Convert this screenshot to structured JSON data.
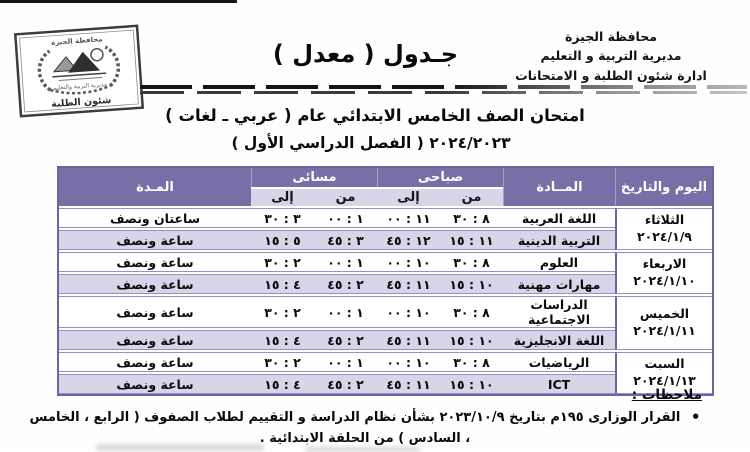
{
  "colors": {
    "header_purple": "#7a6ea6",
    "row_lavender": "#dad4e8",
    "table_border": "#6f64a0",
    "hairline": "#9a8fc2",
    "ink": "#0d0d0d"
  },
  "letterhead": {
    "org_line1": "محافظة الجيزة",
    "org_line2": "مديرية التربية و التعليم",
    "org_line3": "ادارة شئون الطلبة و الامتحانات",
    "banner": "جـدول ( معدل )",
    "stamp_top": "محافظة الجيزة",
    "stamp_middle": "مديرية التربية والتعليم",
    "stamp_bottom": "شئون الطلبة"
  },
  "title": {
    "line1": "امتحان الصف الخامس الابتدائي عام ( عربي ـ لغات )",
    "line2_label": "( الفصل الدراسي الأول )",
    "line2_years": "٢٠٢٤/٢٠٢٣"
  },
  "table": {
    "col_day": "اليوم والتاريخ",
    "col_subject": "المــادة",
    "col_morning": "صباحى",
    "col_evening": "مسائى",
    "col_from": "من",
    "col_to": "إلى",
    "col_duration": "المـدة",
    "days": [
      {
        "name": "الثلاثاء",
        "date": "٢٠٢٤/١/٩"
      },
      {
        "name": "الاربعاء",
        "date": "٢٠٢٤/١/١٠"
      },
      {
        "name": "الخميس",
        "date": "٢٠٢٤/١/١١"
      },
      {
        "name": "السبت",
        "date": "٢٠٢٤/١/١٣"
      }
    ],
    "rows": [
      {
        "subject": "اللغة العربية",
        "morning_from": "٨ : ٣٠",
        "morning_to": "١١ : ٠٠",
        "evening_from": "١ : ٠٠",
        "evening_to": "٣ : ٣٠",
        "duration": "ساعتان ونصف"
      },
      {
        "subject": "التربية الدينية",
        "morning_from": "١١ : ١٥",
        "morning_to": "١٢ : ٤٥",
        "evening_from": "٣ : ٤٥",
        "evening_to": "٥ : ١٥",
        "duration": "ساعة ونصف"
      },
      {
        "subject": "العلوم",
        "morning_from": "٨ : ٣٠",
        "morning_to": "١٠ : ٠٠",
        "evening_from": "١ : ٠٠",
        "evening_to": "٢ : ٣٠",
        "duration": "ساعة ونصف"
      },
      {
        "subject": "مهارات مهنية",
        "morning_from": "١٠ : ١٥",
        "morning_to": "١١ : ٤٥",
        "evening_from": "٢ : ٤٥",
        "evening_to": "٤ : ١٥",
        "duration": "ساعة ونصف"
      },
      {
        "subject": "الدراسات الاجتماعية",
        "morning_from": "٨ : ٣٠",
        "morning_to": "١٠ : ٠٠",
        "evening_from": "١ : ٠٠",
        "evening_to": "٢ : ٣٠",
        "duration": "ساعة ونصف"
      },
      {
        "subject": "اللغة الانجليزية",
        "morning_from": "١٠ : ١٥",
        "morning_to": "١١ : ٤٥",
        "evening_from": "٢ : ٤٥",
        "evening_to": "٤ : ١٥",
        "duration": "ساعة ونصف"
      },
      {
        "subject": "الرياضيات",
        "morning_from": "٨ : ٣٠",
        "morning_to": "١٠ : ٠٠",
        "evening_from": "١ : ٠٠",
        "evening_to": "٢ : ٣٠",
        "duration": "ساعة ونصف"
      },
      {
        "subject": "ICT",
        "morning_from": "١٠ : ١٥",
        "morning_to": "١١ : ٤٥",
        "evening_from": "٢ : ٤٥",
        "evening_to": "٤ : ١٥",
        "duration": "ساعة ونصف"
      }
    ]
  },
  "notes": {
    "heading": "ملاحظات :",
    "bullet": "•",
    "item1_pre": "القرار الوزارى ١٩٥م  بتاريخ",
    "item1_date": "٢٠٢٣/١٠/٩",
    "item1_post": "بشأن نظام الدراسة و التقييم لطلاب الصفوف ( الرابع ، الخامس ، السادس ) من الحلقة الابتدائية ."
  }
}
